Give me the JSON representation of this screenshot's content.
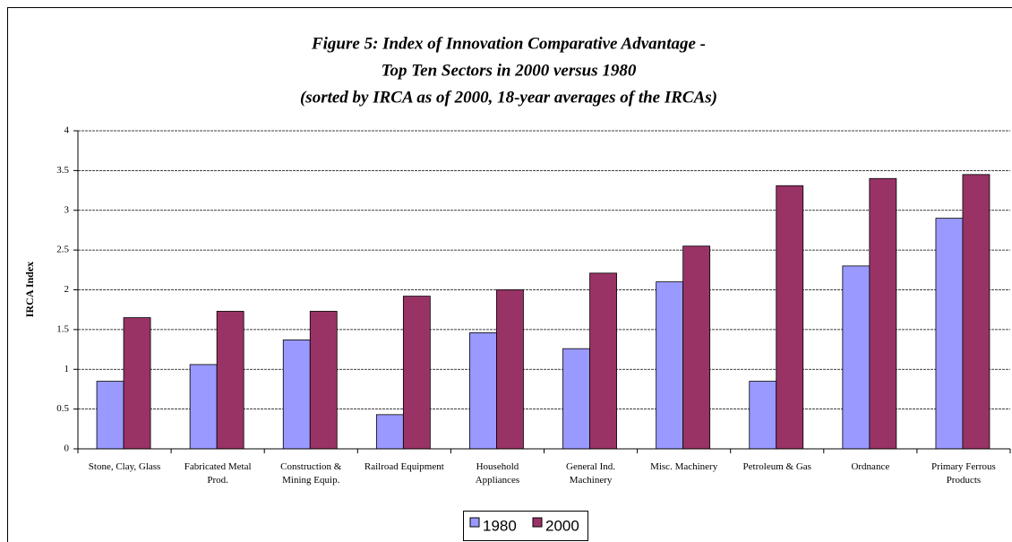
{
  "chart_data": {
    "type": "bar",
    "title": [
      "Figure 5: Index of Innovation Comparative Advantage -",
      "Top Ten Sectors in 2000 versus  1980",
      "(sorted by IRCA as of 2000, 18-year averages of the IRCAs)"
    ],
    "y_label": "IRCA Index",
    "categories": [
      "Stone, Clay, Glass",
      "Fabricated Metal Prod.",
      "Construction & Mining Equip.",
      "Railroad Equipment",
      "Household Appliances",
      "General Ind. Machinery",
      "Misc. Machinery",
      "Petroleum & Gas",
      "Ordnance",
      "Primary Ferrous Products"
    ],
    "series": [
      {
        "name": "1980",
        "color": "#9999ff",
        "values": [
          0.85,
          1.06,
          1.37,
          0.43,
          1.46,
          1.26,
          2.1,
          0.85,
          2.3,
          2.9
        ]
      },
      {
        "name": "2000",
        "color": "#993366",
        "values": [
          1.65,
          1.73,
          1.73,
          1.92,
          2.0,
          2.21,
          2.55,
          3.31,
          3.4,
          3.45
        ]
      }
    ],
    "ylim": [
      0,
      4
    ],
    "yticks": [
      0,
      0.5,
      1,
      1.5,
      2,
      2.5,
      3,
      3.5,
      4
    ],
    "grid": true,
    "legend": "bottom"
  }
}
